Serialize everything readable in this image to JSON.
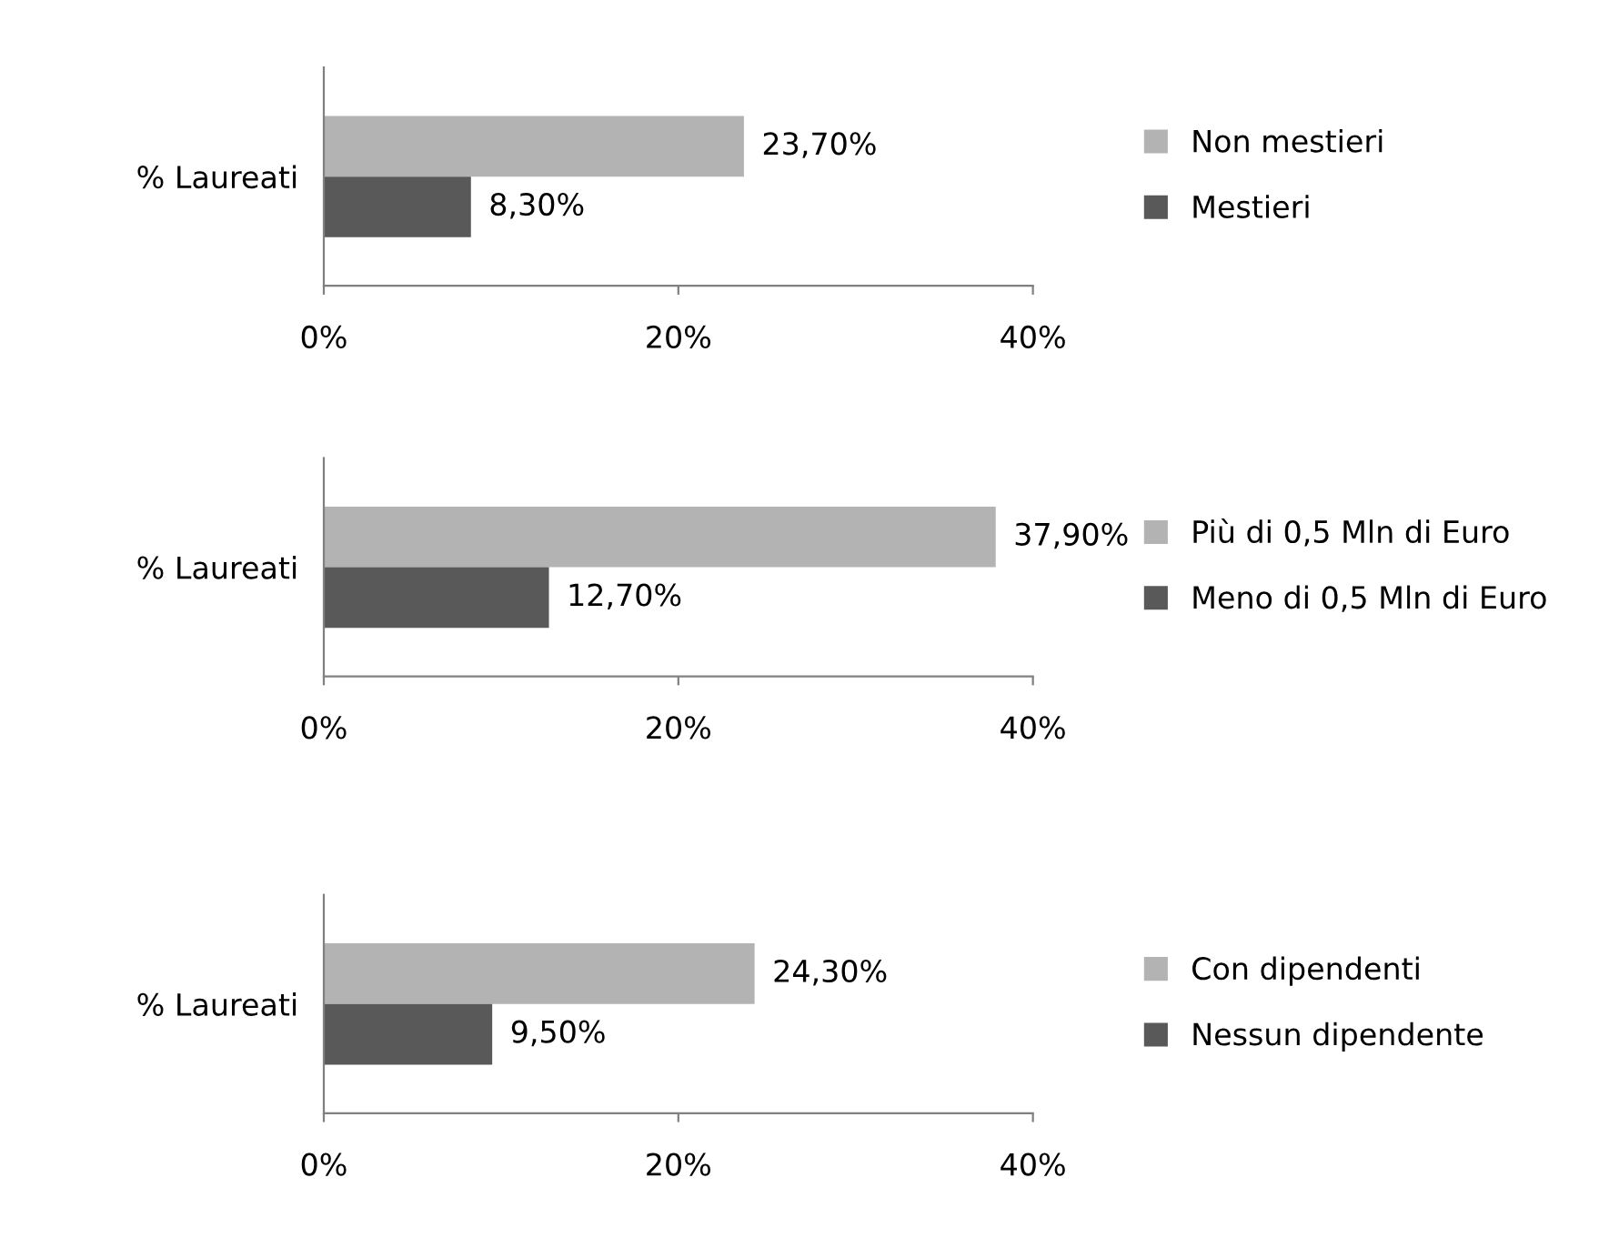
{
  "chart_data": [
    {
      "type": "bar",
      "orientation": "horizontal",
      "categories": [
        "% Laureati"
      ],
      "xlim": [
        0,
        40
      ],
      "xticks": [
        {
          "value": 0,
          "label": "0%"
        },
        {
          "value": 20,
          "label": "20%"
        },
        {
          "value": 40,
          "label": "40%"
        }
      ],
      "grid": false,
      "legend": "right",
      "series": [
        {
          "name": "Non mestieri",
          "color": "#b3b3b3",
          "values": [
            23.7
          ],
          "value_labels": [
            "23,70%"
          ]
        },
        {
          "name": "Mestieri",
          "color": "#595959",
          "values": [
            8.3
          ],
          "value_labels": [
            "8,30%"
          ]
        }
      ]
    },
    {
      "type": "bar",
      "orientation": "horizontal",
      "categories": [
        "% Laureati"
      ],
      "xlim": [
        0,
        40
      ],
      "xticks": [
        {
          "value": 0,
          "label": "0%"
        },
        {
          "value": 20,
          "label": "20%"
        },
        {
          "value": 40,
          "label": "40%"
        }
      ],
      "grid": false,
      "legend": "right",
      "series": [
        {
          "name": "Più di 0,5 Mln di Euro",
          "color": "#b3b3b3",
          "values": [
            37.9
          ],
          "value_labels": [
            "37,90%"
          ]
        },
        {
          "name": "Meno di 0,5 Mln di Euro",
          "color": "#595959",
          "values": [
            12.7
          ],
          "value_labels": [
            "12,70%"
          ]
        }
      ]
    },
    {
      "type": "bar",
      "orientation": "horizontal",
      "categories": [
        "% Laureati"
      ],
      "xlim": [
        0,
        40
      ],
      "xticks": [
        {
          "value": 0,
          "label": "0%"
        },
        {
          "value": 20,
          "label": "20%"
        },
        {
          "value": 40,
          "label": "40%"
        }
      ],
      "grid": false,
      "legend": "right",
      "series": [
        {
          "name": "Con dipendenti",
          "color": "#b3b3b3",
          "values": [
            24.3
          ],
          "value_labels": [
            "24,30%"
          ]
        },
        {
          "name": "Nessun dipendente",
          "color": "#595959",
          "values": [
            9.5
          ],
          "value_labels": [
            "9,50%"
          ]
        }
      ]
    }
  ]
}
